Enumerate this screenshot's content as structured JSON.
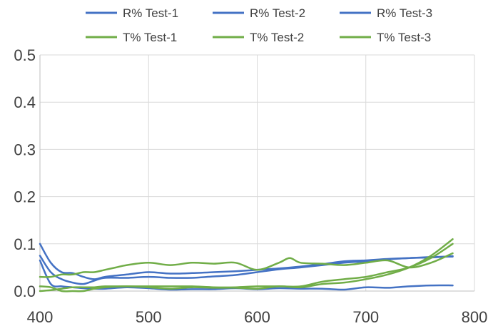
{
  "chart_data": {
    "type": "line",
    "title": "",
    "xlabel": "",
    "ylabel": "",
    "xlim": [
      400,
      800
    ],
    "ylim": [
      0,
      0.5
    ],
    "x_ticks": [
      "400",
      "500",
      "600",
      "700",
      "800"
    ],
    "y_ticks": [
      "0.0",
      "0.1",
      "0.2",
      "0.3",
      "0.4",
      "0.5"
    ],
    "grid": true,
    "legend_position": "top",
    "series": [
      {
        "name": "R% Test-1",
        "color": "#4472C4",
        "x": [
          400,
          410,
          420,
          430,
          440,
          450,
          460,
          480,
          500,
          520,
          540,
          560,
          580,
          600,
          620,
          640,
          660,
          680,
          700,
          720,
          740,
          760,
          780
        ],
        "y": [
          0.1,
          0.06,
          0.04,
          0.038,
          0.03,
          0.025,
          0.03,
          0.035,
          0.04,
          0.037,
          0.038,
          0.04,
          0.042,
          0.045,
          0.048,
          0.052,
          0.057,
          0.063,
          0.065,
          0.068,
          0.07,
          0.072,
          0.073
        ]
      },
      {
        "name": "R% Test-2",
        "color": "#4472C4",
        "x": [
          400,
          410,
          420,
          430,
          440,
          450,
          460,
          480,
          500,
          520,
          540,
          560,
          580,
          600,
          620,
          640,
          660,
          680,
          700,
          720,
          740,
          760,
          780
        ],
        "y": [
          0.075,
          0.04,
          0.025,
          0.018,
          0.015,
          0.022,
          0.028,
          0.028,
          0.03,
          0.028,
          0.028,
          0.031,
          0.034,
          0.04,
          0.046,
          0.05,
          0.055,
          0.06,
          0.063,
          0.067,
          0.07,
          0.071,
          0.074
        ]
      },
      {
        "name": "R% Test-3",
        "color": "#4472C4",
        "x": [
          400,
          410,
          420,
          430,
          440,
          450,
          460,
          480,
          500,
          520,
          540,
          560,
          580,
          600,
          620,
          640,
          660,
          680,
          700,
          720,
          740,
          760,
          780
        ],
        "y": [
          0.065,
          0.015,
          0.01,
          0.008,
          0.006,
          0.005,
          0.005,
          0.008,
          0.006,
          0.003,
          0.004,
          0.004,
          0.006,
          0.004,
          0.006,
          0.005,
          0.005,
          0.003,
          0.008,
          0.007,
          0.01,
          0.012,
          0.012
        ]
      },
      {
        "name": "T% Test-1",
        "color": "#70AD47",
        "x": [
          400,
          410,
          420,
          430,
          440,
          450,
          460,
          470,
          480,
          500,
          520,
          540,
          560,
          580,
          600,
          620,
          630,
          640,
          660,
          680,
          700,
          720,
          740,
          760,
          780
        ],
        "y": [
          0.03,
          0.03,
          0.035,
          0.035,
          0.04,
          0.04,
          0.045,
          0.05,
          0.055,
          0.06,
          0.055,
          0.06,
          0.058,
          0.06,
          0.045,
          0.06,
          0.07,
          0.06,
          0.058,
          0.055,
          0.06,
          0.065,
          0.05,
          0.06,
          0.08
        ]
      },
      {
        "name": "T% Test-2",
        "color": "#70AD47",
        "x": [
          400,
          410,
          420,
          430,
          440,
          450,
          460,
          480,
          500,
          520,
          540,
          560,
          580,
          600,
          620,
          640,
          660,
          680,
          700,
          720,
          740,
          760,
          780
        ],
        "y": [
          0.01,
          0.008,
          0.0,
          0.0,
          0.0,
          0.005,
          0.008,
          0.01,
          0.008,
          0.005,
          0.008,
          0.007,
          0.007,
          0.005,
          0.01,
          0.008,
          0.015,
          0.018,
          0.025,
          0.035,
          0.05,
          0.075,
          0.11
        ]
      },
      {
        "name": "T% Test-3",
        "color": "#70AD47",
        "x": [
          400,
          410,
          420,
          430,
          440,
          450,
          460,
          480,
          500,
          520,
          540,
          560,
          580,
          600,
          620,
          640,
          660,
          680,
          700,
          720,
          740,
          760,
          780
        ],
        "y": [
          0.0,
          0.002,
          0.005,
          0.008,
          0.008,
          0.008,
          0.01,
          0.01,
          0.01,
          0.01,
          0.01,
          0.008,
          0.008,
          0.01,
          0.01,
          0.01,
          0.02,
          0.025,
          0.03,
          0.04,
          0.05,
          0.07,
          0.1
        ]
      }
    ]
  }
}
